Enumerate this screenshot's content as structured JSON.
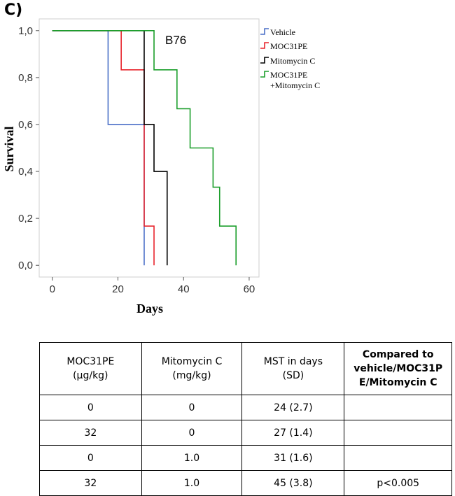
{
  "panel_label": "C)",
  "chart_data": {
    "type": "line",
    "step": true,
    "annotation": "B76",
    "xlabel": "Days",
    "ylabel": "Survival",
    "xlim": [
      -4,
      63
    ],
    "ylim": [
      -0.05,
      1.05
    ],
    "x_ticks": [
      0,
      20,
      40,
      60
    ],
    "x_tick_labels": [
      "0",
      "20",
      "40",
      "60"
    ],
    "y_ticks": [
      0.0,
      0.2,
      0.4,
      0.6,
      0.8,
      1.0
    ],
    "y_tick_labels": [
      "0,0",
      "0,2",
      "0,4",
      "0,6",
      "0,8",
      "1,0"
    ],
    "grid": false,
    "legend_position": "top-right, outside plot",
    "series": [
      {
        "name": "Vehicle",
        "color": "#4a6fc7",
        "x": [
          0,
          17,
          28
        ],
        "y": [
          1.0,
          0.6,
          0.0
        ]
      },
      {
        "name": "MOC31PE",
        "color": "#e8242c",
        "x": [
          0,
          21,
          28,
          31
        ],
        "y": [
          1.0,
          0.833,
          0.167,
          0.0
        ]
      },
      {
        "name": "Mitomycin C",
        "color": "#000000",
        "x": [
          0,
          28,
          31,
          35
        ],
        "y": [
          1.0,
          0.6,
          0.4,
          0.0
        ]
      },
      {
        "name": "MOC31PE\n+Mitomycin C",
        "color": "#1a9e2a",
        "x": [
          0,
          31,
          38,
          42,
          49,
          51,
          56
        ],
        "y": [
          1.0,
          0.833,
          0.667,
          0.5,
          0.333,
          0.167,
          0.0
        ]
      }
    ]
  },
  "table": {
    "headers": [
      {
        "text": "MOC31PE\n(μg/kg)",
        "bold": false
      },
      {
        "text": "Mitomycin C\n(mg/kg)",
        "bold": false
      },
      {
        "text": "MST in days\n(SD)",
        "bold": false
      },
      {
        "text": "Compared to\nvehicle/MOC31P\nE/Mitomycin C",
        "bold": true
      }
    ],
    "rows": [
      [
        "0",
        "0",
        "24 (2.7)",
        ""
      ],
      [
        "32",
        "0",
        "27 (1.4)",
        ""
      ],
      [
        "0",
        "1.0",
        "31 (1.6)",
        ""
      ],
      [
        "32",
        "1.0",
        "45 (3.8)",
        "p<0.005"
      ]
    ]
  }
}
